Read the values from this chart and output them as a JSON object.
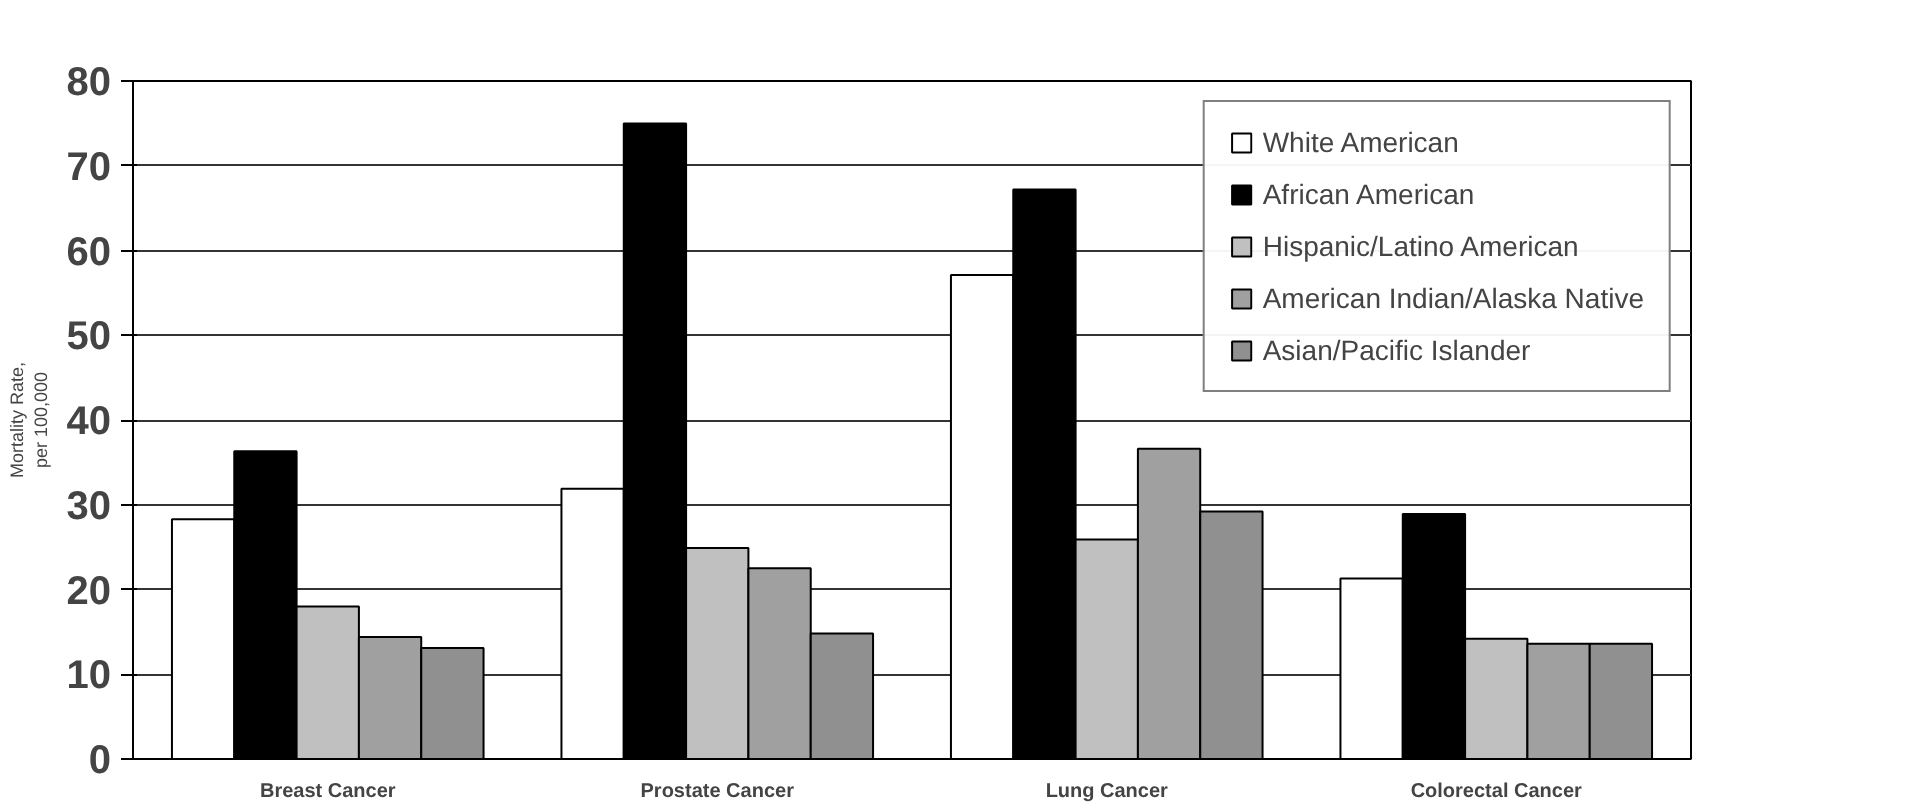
{
  "chart_data": {
    "type": "bar",
    "ylabel": "Mortality Rate,\nper 100,000",
    "categories": [
      "Breast Cancer",
      "Prostate Cancer",
      "Lung Cancer",
      "Colorectal Cancer"
    ],
    "series": [
      {
        "name": "White American",
        "color": "#ffffff",
        "values": [
          28.3,
          31.9,
          57.1,
          21.3
        ]
      },
      {
        "name": "African American",
        "color": "#000000",
        "values": [
          36.3,
          75,
          67.2,
          28.9
        ]
      },
      {
        "name": "Hispanic/Latino American",
        "color": "#c0c0c0",
        "values": [
          18,
          24.9,
          25.9,
          14.2
        ]
      },
      {
        "name": "American Indian/Alaska Native",
        "color": "#a0a0a0",
        "values": [
          14.4,
          22.5,
          36.6,
          13.6
        ]
      },
      {
        "name": "Asian/Pacific Islander",
        "color": "#909090",
        "values": [
          13.1,
          14.8,
          29.2,
          13.6
        ]
      }
    ],
    "ylim": [
      0,
      80
    ],
    "yticks": [
      0,
      10,
      20,
      30,
      40,
      50,
      60,
      70,
      80
    ],
    "grid": "y",
    "legend": "top right"
  }
}
